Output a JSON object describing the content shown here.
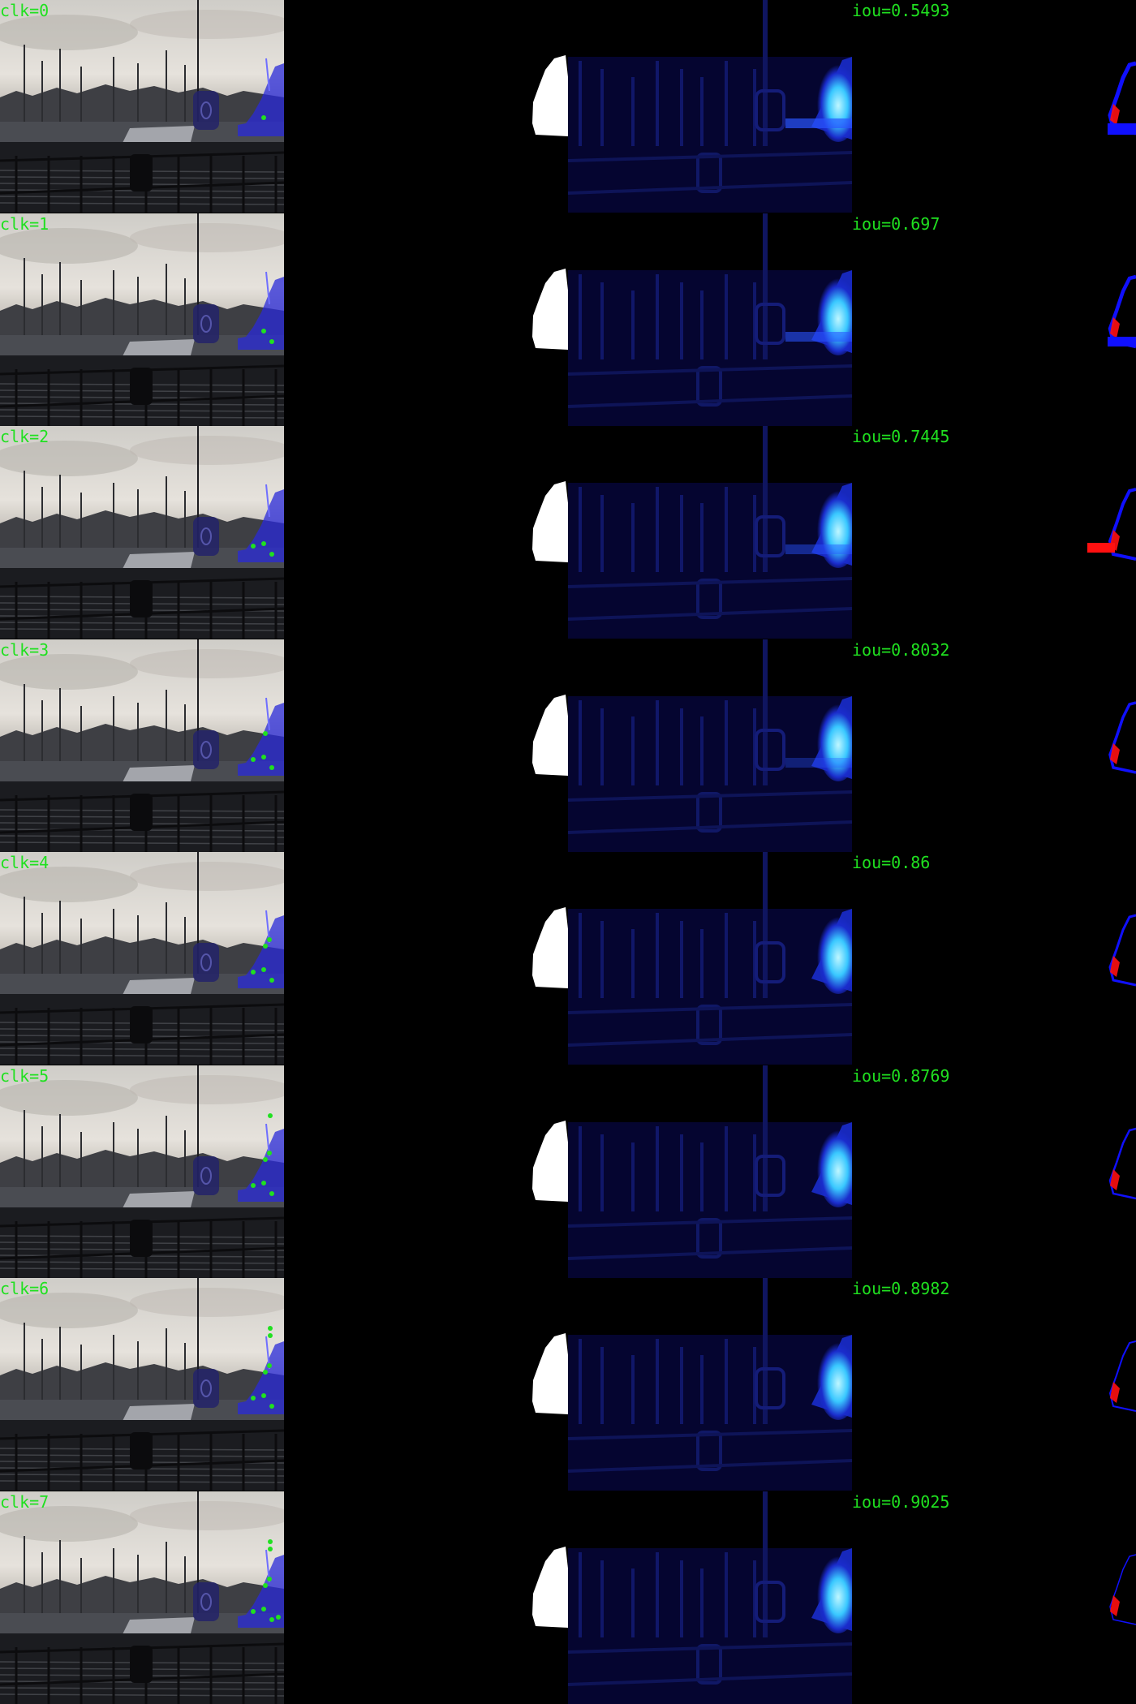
{
  "colors": {
    "label": "#20e020",
    "click_point": "#20e020",
    "mask_overlay": "#2a2ad8",
    "ground_truth": "#ffffff",
    "prob_low": "#050530",
    "prob_mid": "#1a2ccc",
    "prob_high": "#bff6ff",
    "false_positive": "#1010ff",
    "false_negative": "#ff1010"
  },
  "columns": [
    "image-with-clicks",
    "ground-truth-mask",
    "probability-map",
    "error-map"
  ],
  "rows": [
    {
      "click_label": "clk=0",
      "iou_label": "iou=0.5493",
      "clicks": 1
    },
    {
      "click_label": "clk=1",
      "iou_label": "iou=0.697",
      "clicks": 2
    },
    {
      "click_label": "clk=2",
      "iou_label": "iou=0.7445",
      "clicks": 3
    },
    {
      "click_label": "clk=3",
      "iou_label": "iou=0.8032",
      "clicks": 4
    },
    {
      "click_label": "clk=4",
      "iou_label": "iou=0.86",
      "clicks": 5
    },
    {
      "click_label": "clk=5",
      "iou_label": "iou=0.8769",
      "clicks": 6
    },
    {
      "click_label": "clk=6",
      "iou_label": "iou=0.8982",
      "clicks": 7
    },
    {
      "click_label": "clk=7",
      "iou_label": "iou=0.9025",
      "clicks": 8
    }
  ]
}
